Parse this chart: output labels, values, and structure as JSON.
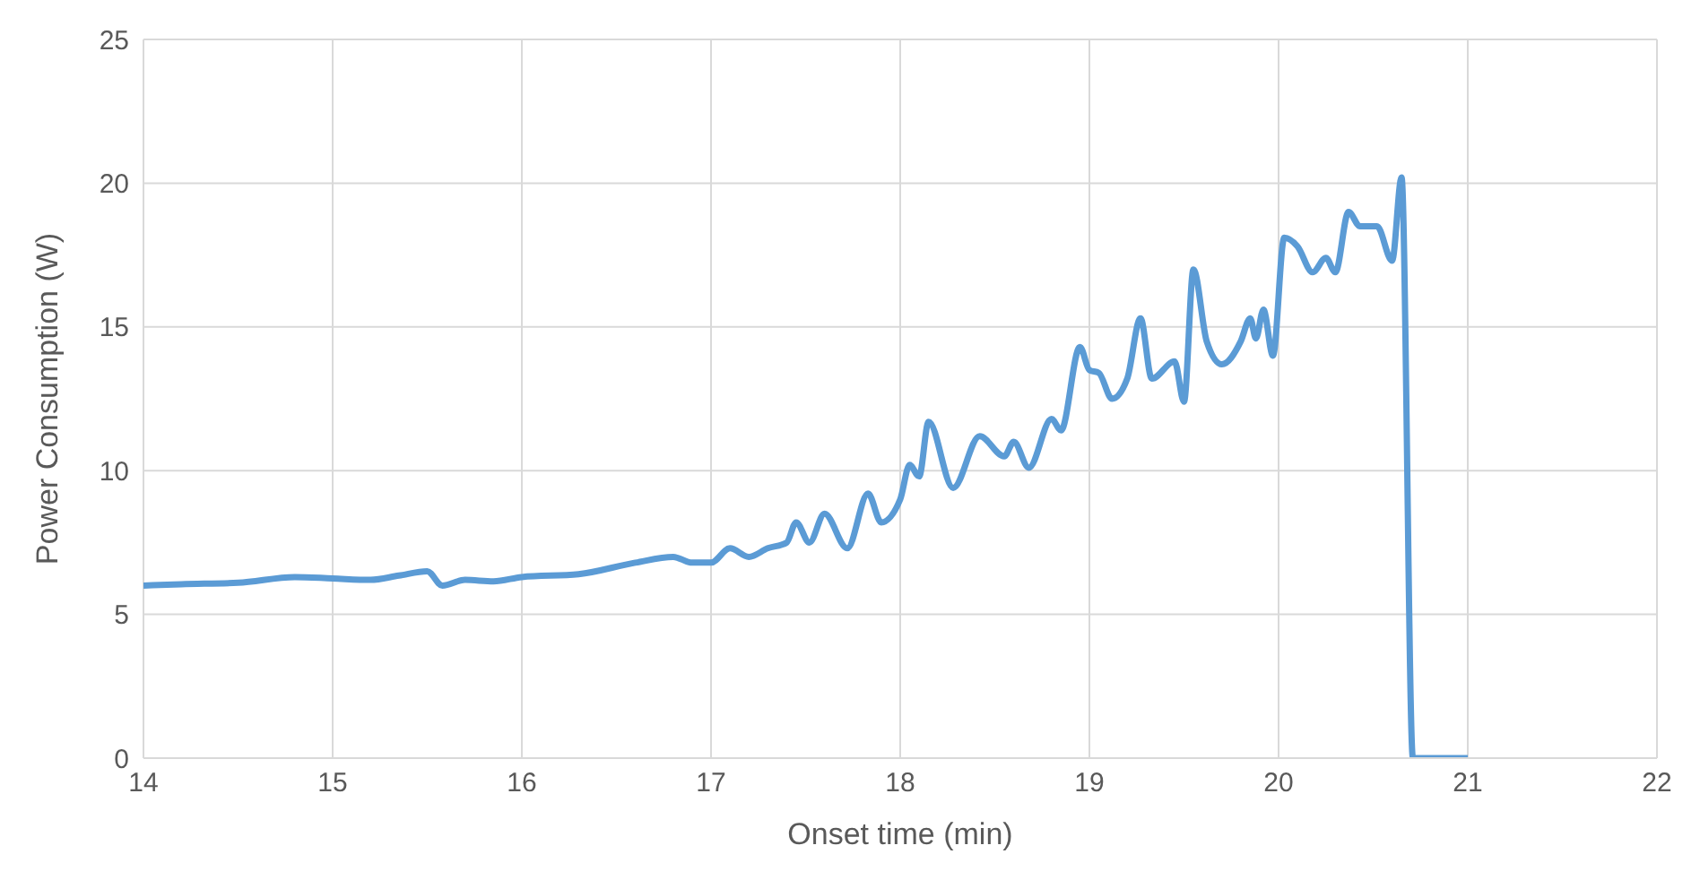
{
  "chart_data": {
    "type": "line",
    "xlabel": "Onset time (min)",
    "ylabel": "Power Consumption (W)",
    "x": [
      14.0,
      14.2,
      14.5,
      14.8,
      15.0,
      15.2,
      15.35,
      15.5,
      15.58,
      15.7,
      15.85,
      16.0,
      16.3,
      16.6,
      16.8,
      16.9,
      17.0,
      17.1,
      17.2,
      17.3,
      17.4,
      17.45,
      17.52,
      17.6,
      17.72,
      17.83,
      17.9,
      18.0,
      18.05,
      18.1,
      18.15,
      18.28,
      18.42,
      18.55,
      18.6,
      18.68,
      18.8,
      18.85,
      18.95,
      19.0,
      19.05,
      19.12,
      19.2,
      19.27,
      19.33,
      19.45,
      19.5,
      19.55,
      19.62,
      19.7,
      19.8,
      19.85,
      19.88,
      19.92,
      19.97,
      20.03,
      20.1,
      20.18,
      20.25,
      20.3,
      20.37,
      20.43,
      20.52,
      20.6,
      20.65,
      20.71,
      21.0
    ],
    "series": [
      {
        "color": "#5b9bd5",
        "values": [
          6.0,
          6.05,
          6.1,
          6.3,
          6.25,
          6.2,
          6.35,
          6.5,
          6.0,
          6.2,
          6.15,
          6.3,
          6.4,
          6.8,
          7.0,
          6.8,
          6.8,
          7.3,
          7.0,
          7.3,
          7.5,
          8.2,
          7.5,
          8.5,
          7.3,
          9.2,
          8.2,
          9.0,
          10.2,
          9.8,
          11.7,
          9.4,
          11.2,
          10.5,
          11.0,
          10.1,
          11.8,
          11.4,
          14.3,
          13.5,
          13.4,
          12.5,
          13.2,
          15.3,
          13.2,
          13.8,
          12.4,
          17.0,
          14.5,
          13.7,
          14.5,
          15.3,
          14.6,
          15.6,
          14.0,
          18.1,
          17.8,
          16.9,
          17.4,
          16.9,
          19.0,
          18.5,
          18.5,
          17.3,
          20.2,
          0,
          0
        ]
      }
    ],
    "xlim": [
      14,
      22
    ],
    "xticks": [
      14,
      15,
      16,
      17,
      18,
      19,
      20,
      21,
      22
    ],
    "ylim": [
      0,
      25
    ],
    "yticks": [
      0,
      5,
      10,
      15,
      20,
      25
    ],
    "grid": true,
    "marker": "none",
    "line_style": "solid"
  }
}
